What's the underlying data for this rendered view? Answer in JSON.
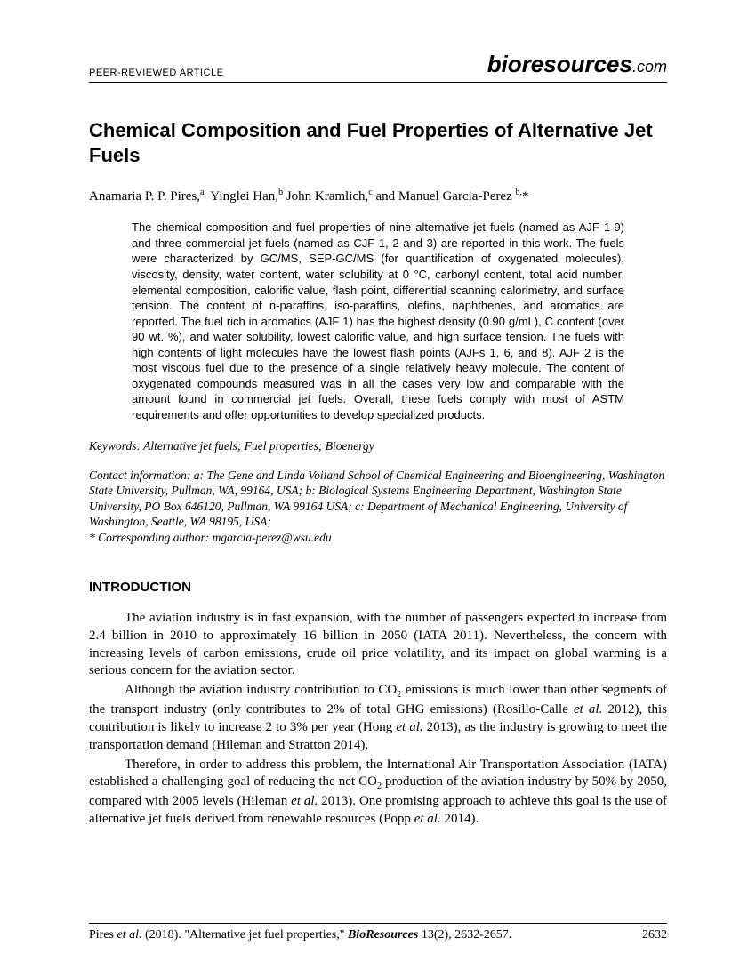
{
  "header": {
    "left": "PEER-REVIEWED ARTICLE",
    "brand": "bioresources",
    "dotcom": ".com"
  },
  "title": "Chemical Composition and Fuel Properties of Alternative Jet Fuels",
  "authors_html": "Anamaria P. P. Pires,<sup>a</sup>&nbsp; Yinglei Han,<sup>b</sup> John Kramlich,<sup>c</sup> and Manuel Garcia-Perez <sup>b,</sup>*",
  "abstract": "The chemical composition and fuel properties of nine alternative jet fuels (named as AJF 1-9) and three commercial jet fuels (named as CJF 1, 2 and 3) are reported in this work. The fuels were characterized by GC/MS, SEP-GC/MS (for quantification of oxygenated molecules), viscosity, density, water content, water solubility at 0 °C, carbonyl content, total acid number, elemental composition, calorific value, flash point, differential scanning calorimetry, and surface tension. The content of n-paraffins, iso-paraffins, olefins, naphthenes, and aromatics are reported. The fuel rich in aromatics (AJF 1) has the highest density (0.90 g/mL), C content (over 90 wt. %), and water solubility, lowest calorific value, and high surface tension. The fuels with high contents of light molecules have the lowest flash points (AJFs 1, 6, and 8). AJF 2 is the most viscous fuel due to the presence of a single relatively heavy molecule. The content of oxygenated compounds measured was in all the cases very low and comparable with the amount found in commercial jet fuels. Overall, these fuels comply with most of ASTM requirements and offer opportunities to develop specialized products.",
  "keywords_label": "Keywords:",
  "keywords": "Alternative jet fuels; Fuel properties; Bioenergy",
  "contact_label": "Contact information:",
  "contact": "a: The Gene and Linda Voiland School of Chemical Engineering and Bioengineering, Washington State University, Pullman, WA, 99164, USA; b: Biological Systems Engineering Department, Washington State University, PO Box 646120, Pullman, WA 99164 USA; c: Department of Mechanical Engineering, University of Washington, Seattle, WA 98195, USA;",
  "corresponding": "* Corresponding author: mgarcia-perez@wsu.edu",
  "section": "INTRODUCTION",
  "para1": "The aviation industry is in fast expansion, with the number of passengers expected to increase from 2.4 billion in 2010 to approximately 16 billion in 2050 (IATA 2011). Nevertheless, the concern with increasing levels of carbon emissions, crude oil price volatility, and its impact on global warming is a serious concern for the aviation sector.",
  "para2_html": "Although the aviation industry contribution to CO<sub>2</sub> emissions is much lower than other segments of the transport industry (only contributes to 2% of total GHG emissions) (Rosillo-Calle <em>et al.</em> 2012), this contribution is likely to increase 2 to 3% per year (Hong <em>et al.</em> 2013), as the industry is growing to meet the transportation demand (Hileman and Stratton 2014).",
  "para3_html": "Therefore, in order to address this problem, the International Air Transportation Association (IATA) established a challenging goal of reducing the net CO<sub>2</sub> production of the aviation industry by 50% by 2050, compared with 2005 levels (Hileman <em>et al.</em> 2013). One promising approach to achieve this goal is the use of alternative jet fuels derived from renewable resources (Popp <em>et al.</em> 2014).",
  "footer": {
    "cite_html": "Pires <em>et al.</em> (2018). \"Alternative jet fuel properties,\" <span class=\"bi\">BioResources</span> 13(2), 2632-2657.",
    "page": "2632"
  }
}
